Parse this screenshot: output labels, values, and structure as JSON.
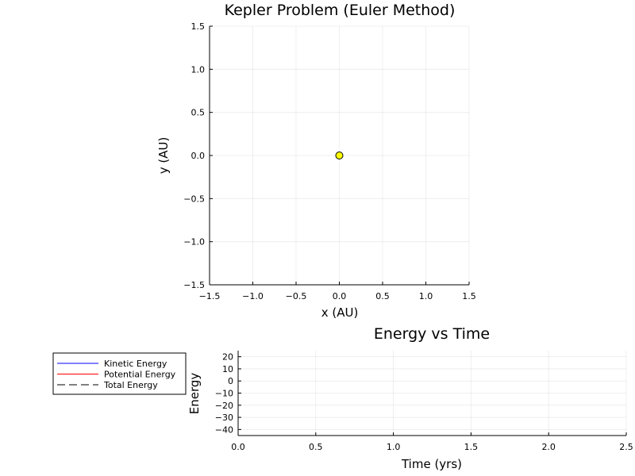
{
  "chart_data": [
    {
      "type": "scatter",
      "title": "Kepler Problem (Euler Method)",
      "xlabel": "x (AU)",
      "ylabel": "y (AU)",
      "xlim": [
        -1.5,
        1.5
      ],
      "ylim": [
        -1.5,
        1.5
      ],
      "xticks": [
        -1.5,
        -1.0,
        -0.5,
        0.0,
        0.5,
        1.0,
        1.5
      ],
      "xtick_labels": [
        "−1.5",
        "−1.0",
        "−0.5",
        "0.0",
        "0.5",
        "1.0",
        "1.5"
      ],
      "yticks": [
        -1.5,
        -1.0,
        -0.5,
        0.0,
        0.5,
        1.0,
        1.5
      ],
      "ytick_labels": [
        "−1.5",
        "−1.0",
        "−0.5",
        "0.0",
        "0.5",
        "1.0",
        "1.5"
      ],
      "grid": true,
      "points": [
        {
          "x": 0.0,
          "y": 0.0,
          "color": "#ffff00",
          "edge": "#000000"
        }
      ]
    },
    {
      "type": "line",
      "title": "Energy vs Time",
      "xlabel": "Time (yrs)",
      "ylabel": "Energy",
      "xlim": [
        0,
        2.5
      ],
      "ylim": [
        -45,
        25
      ],
      "xticks": [
        0.0,
        0.5,
        1.0,
        1.5,
        2.0,
        2.5
      ],
      "xtick_labels": [
        "0.0",
        "0.5",
        "1.0",
        "1.5",
        "2.0",
        "2.5"
      ],
      "yticks": [
        20,
        10,
        0,
        -10,
        -20,
        -30,
        -40
      ],
      "ytick_labels": [
        "20",
        "10",
        "0",
        "−10",
        "−20",
        "−30",
        "−40"
      ],
      "grid": true,
      "legend_position": "outer-left",
      "series": [
        {
          "name": "Kinetic Energy",
          "color": "#0000ff",
          "dash": "solid",
          "x": [],
          "y": []
        },
        {
          "name": "Potential Energy",
          "color": "#ff0000",
          "dash": "solid",
          "x": [],
          "y": []
        },
        {
          "name": "Total Energy",
          "color": "#000000",
          "dash": "dashed",
          "x": [],
          "y": []
        }
      ]
    }
  ]
}
